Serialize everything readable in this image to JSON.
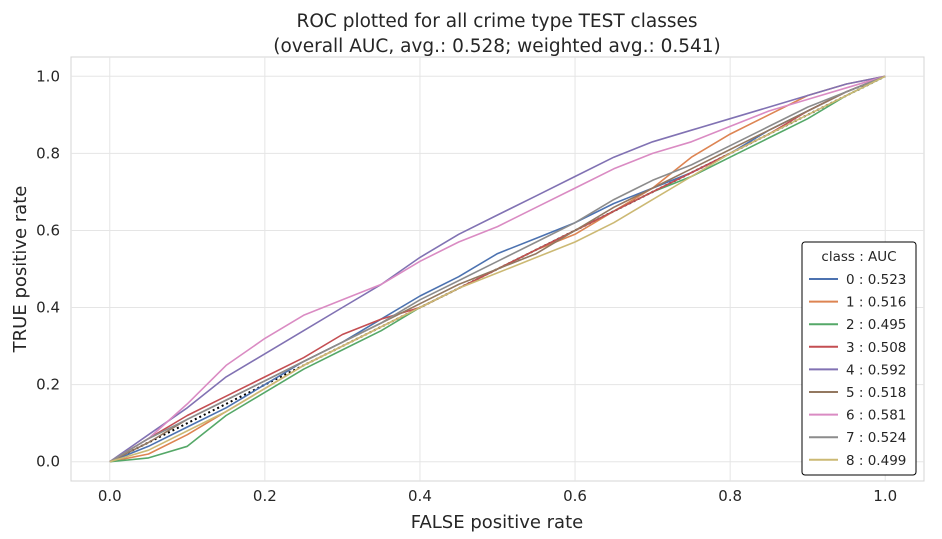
{
  "chart_data": {
    "type": "line",
    "title": "ROC plotted for all crime type TEST classes",
    "subtitle": "(overall AUC, avg.: 0.528; weighted avg.: 0.541)",
    "xlabel": "FALSE positive rate",
    "ylabel": "TRUE positive rate",
    "xlim": [
      -0.05,
      1.05
    ],
    "ylim": [
      -0.05,
      1.05
    ],
    "x_ticks": [
      "0.0",
      "0.2",
      "0.4",
      "0.6",
      "0.8",
      "1.0"
    ],
    "y_ticks": [
      "0.0",
      "0.2",
      "0.4",
      "0.6",
      "0.8",
      "1.0"
    ],
    "tick_values": [
      0,
      0.2,
      0.4,
      0.6,
      0.8,
      1.0
    ],
    "grid": true,
    "legend": {
      "title": "class : AUC",
      "placement": "lower-right"
    },
    "diagonal": {
      "style": "dotted",
      "color": "#000000"
    },
    "series": [
      {
        "name": "0 : 0.523",
        "color": "#4c72b0",
        "x": [
          0,
          0.05,
          0.1,
          0.15,
          0.2,
          0.25,
          0.3,
          0.35,
          0.4,
          0.45,
          0.5,
          0.55,
          0.6,
          0.65,
          0.7,
          0.75,
          0.8,
          0.85,
          0.9,
          0.95,
          1
        ],
        "y": [
          0,
          0.04,
          0.09,
          0.14,
          0.2,
          0.26,
          0.31,
          0.37,
          0.43,
          0.48,
          0.54,
          0.58,
          0.62,
          0.67,
          0.71,
          0.75,
          0.8,
          0.86,
          0.91,
          0.96,
          1
        ]
      },
      {
        "name": "1 : 0.516",
        "color": "#dd8452",
        "x": [
          0,
          0.05,
          0.1,
          0.15,
          0.2,
          0.25,
          0.3,
          0.35,
          0.4,
          0.45,
          0.5,
          0.55,
          0.6,
          0.65,
          0.7,
          0.75,
          0.8,
          0.85,
          0.9,
          0.95,
          1
        ],
        "y": [
          0,
          0.02,
          0.07,
          0.13,
          0.19,
          0.25,
          0.3,
          0.35,
          0.4,
          0.45,
          0.5,
          0.55,
          0.59,
          0.65,
          0.71,
          0.79,
          0.85,
          0.9,
          0.95,
          0.98,
          1
        ]
      },
      {
        "name": "2 : 0.495",
        "color": "#55a868",
        "x": [
          0,
          0.05,
          0.1,
          0.15,
          0.2,
          0.25,
          0.3,
          0.35,
          0.4,
          0.45,
          0.5,
          0.55,
          0.6,
          0.65,
          0.7,
          0.75,
          0.8,
          0.85,
          0.9,
          0.95,
          1
        ],
        "y": [
          0,
          0.01,
          0.04,
          0.12,
          0.18,
          0.24,
          0.29,
          0.34,
          0.4,
          0.45,
          0.5,
          0.55,
          0.6,
          0.65,
          0.7,
          0.74,
          0.79,
          0.84,
          0.89,
          0.95,
          1
        ]
      },
      {
        "name": "3 : 0.508",
        "color": "#c44e52",
        "x": [
          0,
          0.05,
          0.1,
          0.15,
          0.2,
          0.25,
          0.3,
          0.35,
          0.4,
          0.45,
          0.5,
          0.55,
          0.6,
          0.65,
          0.7,
          0.75,
          0.8,
          0.85,
          0.9,
          0.95,
          1
        ],
        "y": [
          0,
          0.06,
          0.12,
          0.17,
          0.22,
          0.27,
          0.33,
          0.37,
          0.4,
          0.45,
          0.5,
          0.55,
          0.6,
          0.65,
          0.7,
          0.75,
          0.8,
          0.85,
          0.91,
          0.96,
          1
        ]
      },
      {
        "name": "4 : 0.592",
        "color": "#8172b3",
        "x": [
          0,
          0.05,
          0.1,
          0.15,
          0.2,
          0.25,
          0.3,
          0.35,
          0.4,
          0.45,
          0.5,
          0.55,
          0.6,
          0.65,
          0.7,
          0.75,
          0.8,
          0.85,
          0.9,
          0.95,
          1
        ],
        "y": [
          0,
          0.07,
          0.14,
          0.22,
          0.28,
          0.34,
          0.4,
          0.46,
          0.53,
          0.59,
          0.64,
          0.69,
          0.74,
          0.79,
          0.83,
          0.86,
          0.89,
          0.92,
          0.95,
          0.98,
          1
        ]
      },
      {
        "name": "5 : 0.518",
        "color": "#937860",
        "x": [
          0,
          0.05,
          0.1,
          0.15,
          0.2,
          0.25,
          0.3,
          0.35,
          0.4,
          0.45,
          0.5,
          0.55,
          0.6,
          0.65,
          0.7,
          0.75,
          0.8,
          0.85,
          0.9,
          0.95,
          1
        ],
        "y": [
          0,
          0.05,
          0.11,
          0.16,
          0.21,
          0.26,
          0.31,
          0.36,
          0.41,
          0.46,
          0.5,
          0.54,
          0.6,
          0.66,
          0.71,
          0.76,
          0.81,
          0.86,
          0.91,
          0.96,
          1
        ]
      },
      {
        "name": "6 : 0.581",
        "color": "#da8bc3",
        "x": [
          0,
          0.05,
          0.1,
          0.15,
          0.2,
          0.25,
          0.3,
          0.35,
          0.4,
          0.45,
          0.5,
          0.55,
          0.6,
          0.65,
          0.7,
          0.75,
          0.8,
          0.85,
          0.9,
          0.95,
          1
        ],
        "y": [
          0,
          0.06,
          0.15,
          0.25,
          0.32,
          0.38,
          0.42,
          0.46,
          0.52,
          0.57,
          0.61,
          0.66,
          0.71,
          0.76,
          0.8,
          0.83,
          0.87,
          0.91,
          0.94,
          0.97,
          1
        ]
      },
      {
        "name": "7 : 0.524",
        "color": "#8c8c8c",
        "x": [
          0,
          0.05,
          0.1,
          0.15,
          0.2,
          0.25,
          0.3,
          0.35,
          0.4,
          0.45,
          0.5,
          0.55,
          0.6,
          0.65,
          0.7,
          0.75,
          0.8,
          0.85,
          0.9,
          0.95,
          1
        ],
        "y": [
          0,
          0.06,
          0.11,
          0.16,
          0.21,
          0.26,
          0.31,
          0.36,
          0.42,
          0.47,
          0.52,
          0.57,
          0.62,
          0.68,
          0.73,
          0.77,
          0.82,
          0.87,
          0.92,
          0.96,
          1
        ]
      },
      {
        "name": "8 : 0.499",
        "color": "#ccb974",
        "x": [
          0,
          0.05,
          0.1,
          0.15,
          0.2,
          0.25,
          0.3,
          0.35,
          0.4,
          0.45,
          0.5,
          0.55,
          0.6,
          0.65,
          0.7,
          0.75,
          0.8,
          0.85,
          0.9,
          0.95,
          1
        ],
        "y": [
          0,
          0.03,
          0.08,
          0.13,
          0.19,
          0.25,
          0.3,
          0.35,
          0.4,
          0.45,
          0.49,
          0.53,
          0.57,
          0.62,
          0.68,
          0.74,
          0.8,
          0.85,
          0.9,
          0.95,
          1
        ]
      }
    ]
  }
}
